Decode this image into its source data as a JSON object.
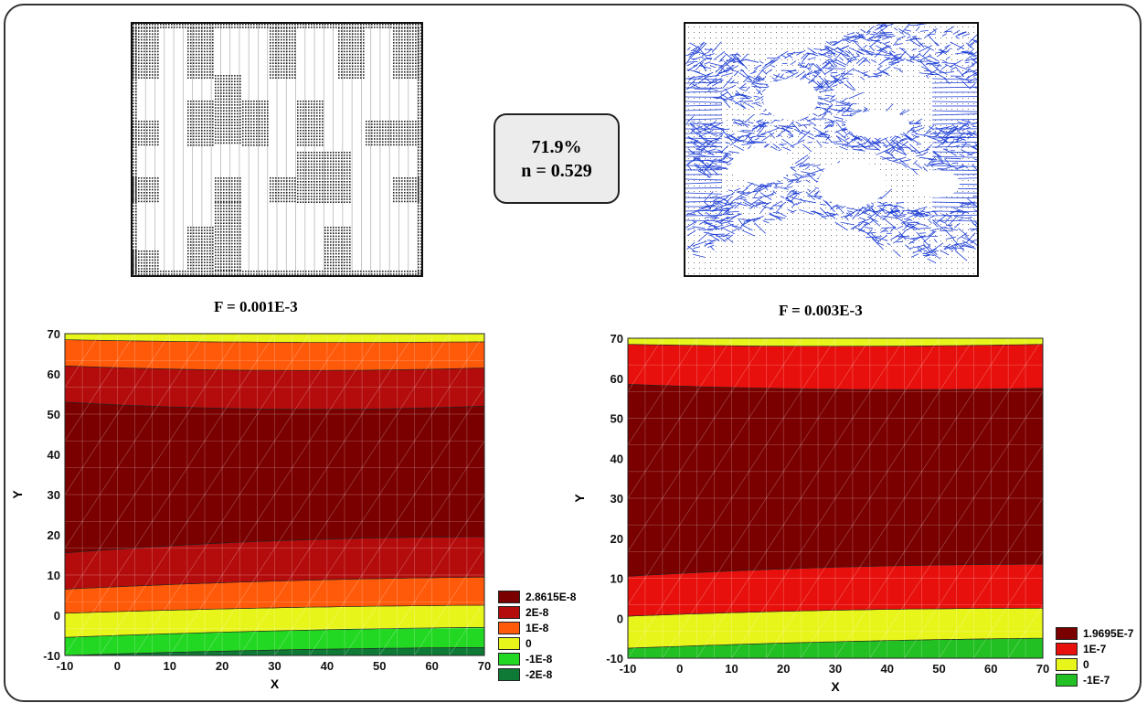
{
  "info_box": {
    "percent": "71.9%",
    "n_value": "n = 0.529"
  },
  "panel_titles": {
    "left": "F = 0.001E-3",
    "right": "F = 0.003E-3"
  },
  "chart_data": [
    {
      "type": "contour",
      "title": "F = 0.001E-3",
      "xlabel": "X",
      "ylabel": "Y",
      "xlim": [
        -10,
        70
      ],
      "ylim": [
        -10,
        70
      ],
      "xticks": [
        -10,
        0,
        10,
        20,
        30,
        40,
        50,
        60,
        70
      ],
      "yticks": [
        -10,
        0,
        10,
        20,
        30,
        40,
        50,
        60,
        70
      ],
      "levels": [
        {
          "label": "2.8615E-8",
          "color": "#7a0000"
        },
        {
          "label": "2E-8",
          "color": "#b40c0c"
        },
        {
          "label": "1E-8",
          "color": "#ff5a0a"
        },
        {
          "label": "0",
          "color": "#e8f51a"
        },
        {
          "label": "-1E-8",
          "color": "#22d822"
        },
        {
          "label": "-2E-8",
          "color": "#0e7a36"
        }
      ],
      "bands": [
        {
          "level": 5,
          "lower": [
            -10,
            -10,
            -10
          ],
          "upper": [
            -10,
            -8.3,
            -8
          ]
        },
        {
          "level": 4,
          "lower": [
            -10,
            -8.3,
            -8
          ],
          "upper": [
            -5.5,
            -3.5,
            -3
          ]
        },
        {
          "level": 3,
          "lower": [
            -5.5,
            -3.5,
            -3
          ],
          "upper": [
            0.5,
            2.2,
            2.5
          ]
        },
        {
          "level": 2,
          "lower": [
            0.5,
            2.2,
            2.5
          ],
          "upper": [
            6.5,
            9,
            9.5
          ]
        },
        {
          "level": 1,
          "lower": [
            6.5,
            9,
            9.5
          ],
          "upper": [
            15.5,
            19.5,
            19.5
          ]
        },
        {
          "level": 0,
          "lower": [
            15.5,
            19.5,
            19.5
          ],
          "upper": [
            53,
            50,
            52
          ]
        },
        {
          "level": 1,
          "lower": [
            53,
            50,
            52
          ],
          "upper": [
            62,
            60,
            61.5
          ]
        },
        {
          "level": 2,
          "lower": [
            62,
            60,
            61.5
          ],
          "upper": [
            68.5,
            67.5,
            68
          ]
        },
        {
          "level": 3,
          "lower": [
            68.5,
            67.5,
            68
          ],
          "upper": [
            70,
            70,
            70
          ]
        }
      ]
    },
    {
      "type": "contour",
      "title": "F = 0.003E-3",
      "xlabel": "X",
      "ylabel": "Y",
      "xlim": [
        -10,
        70
      ],
      "ylim": [
        -10,
        70
      ],
      "xticks": [
        -10,
        0,
        10,
        20,
        30,
        40,
        50,
        60,
        70
      ],
      "yticks": [
        -10,
        0,
        10,
        20,
        30,
        40,
        50,
        60,
        70
      ],
      "levels": [
        {
          "label": "1.9695E-7",
          "color": "#7a0000"
        },
        {
          "label": "1E-7",
          "color": "#e8100c"
        },
        {
          "label": "0",
          "color": "#e8f51a"
        },
        {
          "label": "-1E-7",
          "color": "#22c022"
        }
      ],
      "bands": [
        {
          "level": 3,
          "lower": [
            -10,
            -10,
            -10
          ],
          "upper": [
            -7.5,
            -5.5,
            -5
          ]
        },
        {
          "level": 2,
          "lower": [
            -7.5,
            -5.5,
            -5
          ],
          "upper": [
            0.5,
            2.5,
            2.5
          ]
        },
        {
          "level": 1,
          "lower": [
            0.5,
            2.5,
            2.5
          ],
          "upper": [
            10.5,
            13.5,
            13.5
          ]
        },
        {
          "level": 0,
          "lower": [
            10.5,
            13.5,
            13.5
          ],
          "upper": [
            58.5,
            56.5,
            57.5
          ]
        },
        {
          "level": 1,
          "lower": [
            58.5,
            56.5,
            57.5
          ],
          "upper": [
            68.5,
            67.5,
            68.5
          ]
        },
        {
          "level": 2,
          "lower": [
            68.5,
            67.5,
            68.5
          ],
          "upper": [
            70,
            70,
            70
          ]
        }
      ]
    }
  ]
}
